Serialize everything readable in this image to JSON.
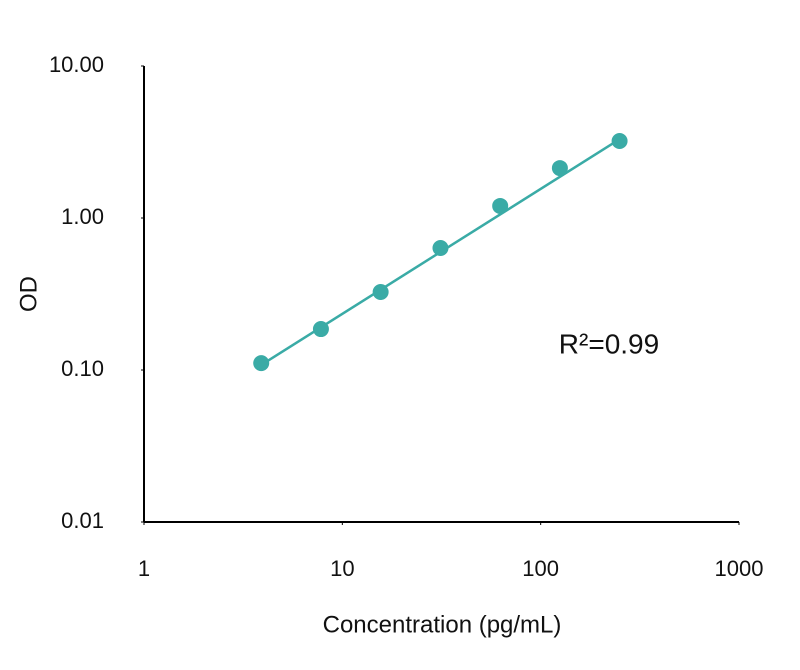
{
  "chart_data": {
    "type": "scatter",
    "x_label": "Concentration (pg/mL)",
    "y_label": "OD",
    "series": [
      {
        "color": "#3aaba6",
        "x": [
          3.9,
          7.8,
          15.6,
          31.25,
          62.5,
          125,
          250
        ],
        "values": [
          0.111,
          0.186,
          0.326,
          0.635,
          1.2,
          2.13,
          3.21
        ]
      }
    ],
    "trendline": {
      "color": "#3aaba6",
      "x": [
        3.9,
        250
      ],
      "values": [
        0.108,
        3.3
      ]
    },
    "annotation": "R²=0.99",
    "xlim": [
      1,
      1000
    ],
    "xticks": [
      1,
      10,
      100,
      1000
    ],
    "xscale": "log",
    "ylim": [
      0.01,
      10
    ],
    "yticks": [
      {
        "value": 0.01,
        "label": "0.01"
      },
      {
        "value": 0.1,
        "label": "0.10"
      },
      {
        "value": 1,
        "label": "1.00"
      },
      {
        "value": 10,
        "label": "10.00"
      }
    ],
    "yscale": "log"
  }
}
